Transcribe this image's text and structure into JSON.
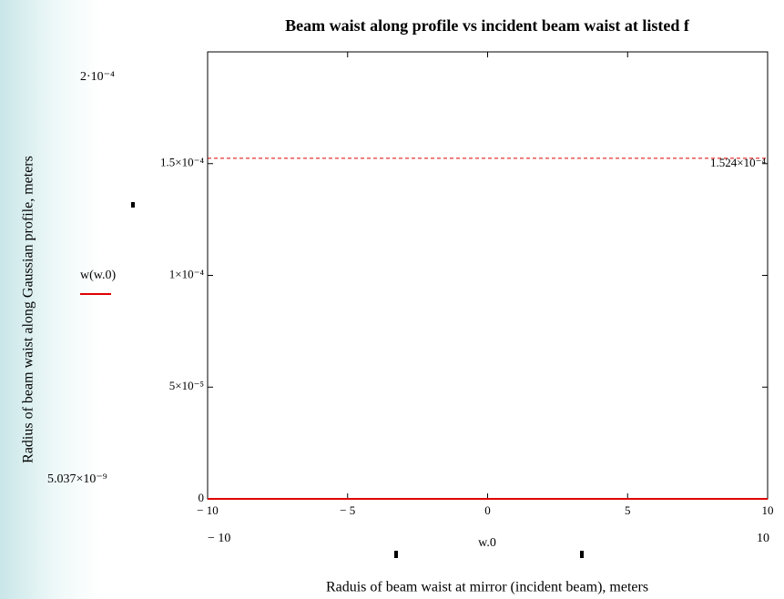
{
  "chart_data": {
    "type": "line",
    "title": "Beam waist along profile vs incident beam waist at listed f",
    "ylabel": "Radius of beam waist along Gaussian profile, meters",
    "xlabel": "Raduis of beam waist at mirror (incident beam), meters",
    "x": [
      -10,
      0,
      10
    ],
    "series": [
      {
        "name": "w(w.0)",
        "color": "#e00000",
        "values": [
          0,
          0,
          0
        ]
      }
    ],
    "xlim": [
      -10,
      10
    ],
    "xticks": [
      {
        "value": -10,
        "label": "− 10"
      },
      {
        "value": -5,
        "label": "− 5"
      },
      0,
      5,
      10
    ],
    "ylim": [
      0,
      0.0002
    ],
    "yticks": [
      0,
      {
        "value": 5e-05,
        "label": "5×10⁻⁵"
      },
      {
        "value": 0.0001,
        "label": "1×10⁻⁴"
      },
      {
        "value": 0.00015,
        "label": "1.5×10⁻⁴"
      }
    ],
    "ylim_labels": [
      "5.037×10⁻⁹",
      "2·10⁻⁴"
    ],
    "xlim_labels": [
      "− 10",
      "10"
    ],
    "x_variable": "w.0",
    "marker": {
      "value": 0.0001524,
      "label": "1.524×10⁻⁴",
      "color": "#e00000"
    }
  }
}
